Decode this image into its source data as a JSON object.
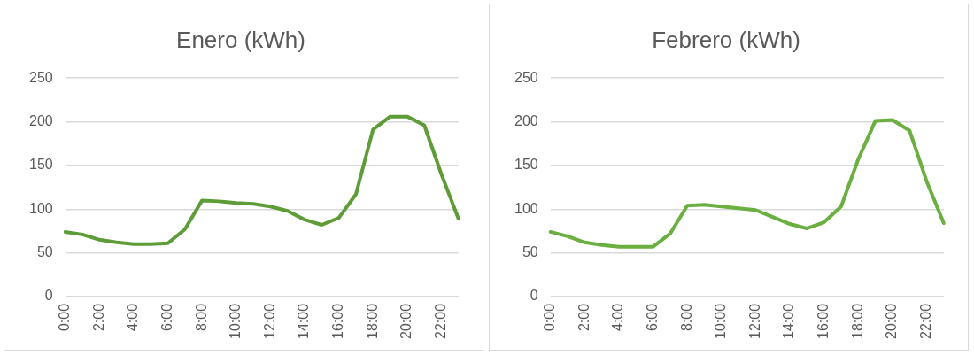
{
  "chart_data": [
    {
      "type": "line",
      "title": "Enero (kWh)",
      "categories": [
        "0:00",
        null,
        "2:00",
        null,
        "4:00",
        null,
        "6:00",
        null,
        "8:00",
        null,
        "10:00",
        null,
        "12:00",
        null,
        "14:00",
        null,
        "16:00",
        null,
        "18:00",
        null,
        "20:00",
        null,
        "22:00",
        null
      ],
      "series": [
        {
          "color": "#5e9c38",
          "values": [
            74,
            71,
            65,
            62,
            60,
            60,
            61,
            77,
            110,
            109,
            107,
            106,
            103,
            98,
            88,
            82,
            90,
            117,
            191,
            206,
            206,
            196,
            140,
            89
          ]
        }
      ],
      "ylim": [
        0,
        250
      ],
      "yticks": [
        0,
        50,
        100,
        150,
        200,
        250
      ],
      "grid": "y",
      "legend": false,
      "marker": "none",
      "line_style": "solid"
    },
    {
      "type": "line",
      "title": "Febrero (kWh)",
      "categories": [
        "0:00",
        null,
        "2:00",
        null,
        "4:00",
        null,
        "6:00",
        null,
        "8:00",
        null,
        "10:00",
        null,
        "12:00",
        null,
        "14:00",
        null,
        "16:00",
        null,
        "18:00",
        null,
        "20:00",
        null,
        "22:00",
        null
      ],
      "series": [
        {
          "color": "#6aaf40",
          "values": [
            74,
            69,
            62,
            59,
            57,
            57,
            57,
            72,
            104,
            105,
            103,
            101,
            99,
            91,
            83,
            78,
            85,
            103,
            157,
            201,
            202,
            190,
            132,
            84
          ]
        }
      ],
      "ylim": [
        0,
        250
      ],
      "yticks": [
        0,
        50,
        100,
        150,
        200,
        250
      ],
      "grid": "y",
      "legend": false,
      "marker": "none",
      "line_style": "solid"
    }
  ]
}
